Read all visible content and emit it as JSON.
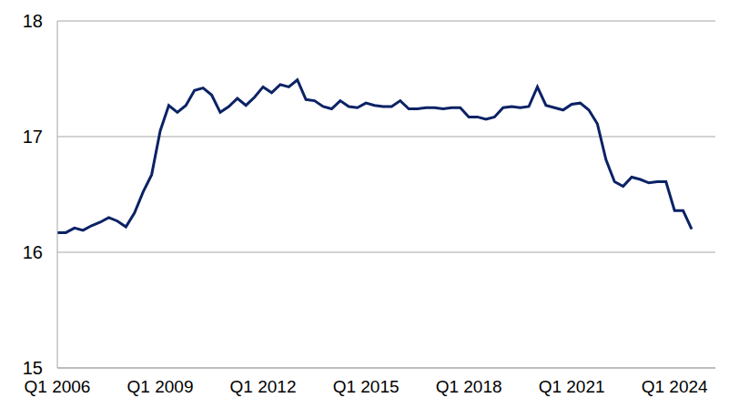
{
  "chart_data": {
    "type": "line",
    "categories": [
      "Q1 2006",
      null,
      null,
      null,
      null,
      null,
      null,
      null,
      null,
      null,
      null,
      null,
      "Q1 2009",
      null,
      null,
      null,
      null,
      null,
      null,
      null,
      null,
      null,
      null,
      null,
      "Q1 2012",
      null,
      null,
      null,
      null,
      null,
      null,
      null,
      null,
      null,
      null,
      null,
      "Q1 2015",
      null,
      null,
      null,
      null,
      null,
      null,
      null,
      null,
      null,
      null,
      null,
      "Q1 2018",
      null,
      null,
      null,
      null,
      null,
      null,
      null,
      null,
      null,
      null,
      null,
      "Q1 2021",
      null,
      null,
      null,
      null,
      null,
      null,
      null,
      null,
      null,
      null,
      null,
      "Q1 2024",
      null,
      null
    ],
    "values": [
      16.17,
      16.17,
      16.21,
      16.19,
      16.23,
      16.26,
      16.3,
      16.27,
      16.22,
      16.34,
      16.52,
      16.67,
      17.05,
      17.27,
      17.21,
      17.27,
      17.4,
      17.42,
      17.36,
      17.21,
      17.26,
      17.33,
      17.27,
      17.34,
      17.43,
      17.38,
      17.45,
      17.43,
      17.49,
      17.32,
      17.31,
      17.26,
      17.24,
      17.31,
      17.26,
      17.25,
      17.29,
      17.27,
      17.26,
      17.26,
      17.31,
      17.24,
      17.24,
      17.25,
      17.25,
      17.24,
      17.25,
      17.25,
      17.17,
      17.17,
      17.15,
      17.17,
      17.25,
      17.26,
      17.25,
      17.26,
      17.43,
      17.27,
      17.25,
      17.23,
      17.28,
      17.29,
      17.23,
      17.11,
      16.8,
      16.61,
      16.57,
      16.65,
      16.63,
      16.6,
      16.61,
      16.61,
      16.36,
      16.36,
      16.2
    ],
    "color": "#0b2265",
    "ylim": [
      15,
      18
    ],
    "yticks": [
      15,
      16,
      17,
      18
    ],
    "grid": true
  }
}
